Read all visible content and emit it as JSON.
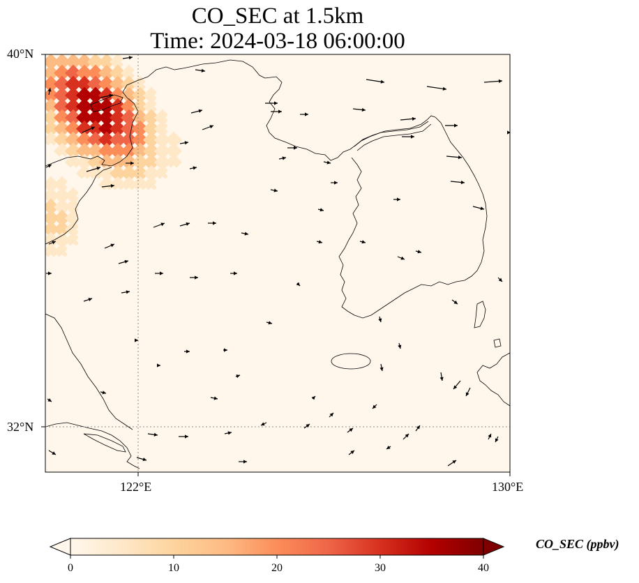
{
  "title": {
    "line1": "CO_SEC at 1.5km",
    "line2": "Time: 2024-03-18 06:00:00"
  },
  "axes": {
    "lat_ticks": [
      "40°N",
      "32°N"
    ],
    "lon_ticks": [
      "122°E",
      "130°E"
    ],
    "lon_range": [
      120,
      130
    ],
    "lat_range": [
      31,
      40
    ]
  },
  "colorbar": {
    "label": "CO_SEC (ppbv)",
    "min": 0,
    "max": 40,
    "ticks": [
      "0",
      "10",
      "20",
      "30",
      "40"
    ],
    "extend": "both",
    "colormap": "OrRd",
    "colors": [
      "#fff7ec",
      "#fee8c8",
      "#fdd49e",
      "#fdbb84",
      "#fc8d59",
      "#ef6548",
      "#d7301f",
      "#b30000",
      "#7f0000"
    ]
  },
  "map": {
    "background_color": "#fff7ec",
    "coastline_color": "#000000",
    "gridline_color": "#8a8a8a"
  }
}
